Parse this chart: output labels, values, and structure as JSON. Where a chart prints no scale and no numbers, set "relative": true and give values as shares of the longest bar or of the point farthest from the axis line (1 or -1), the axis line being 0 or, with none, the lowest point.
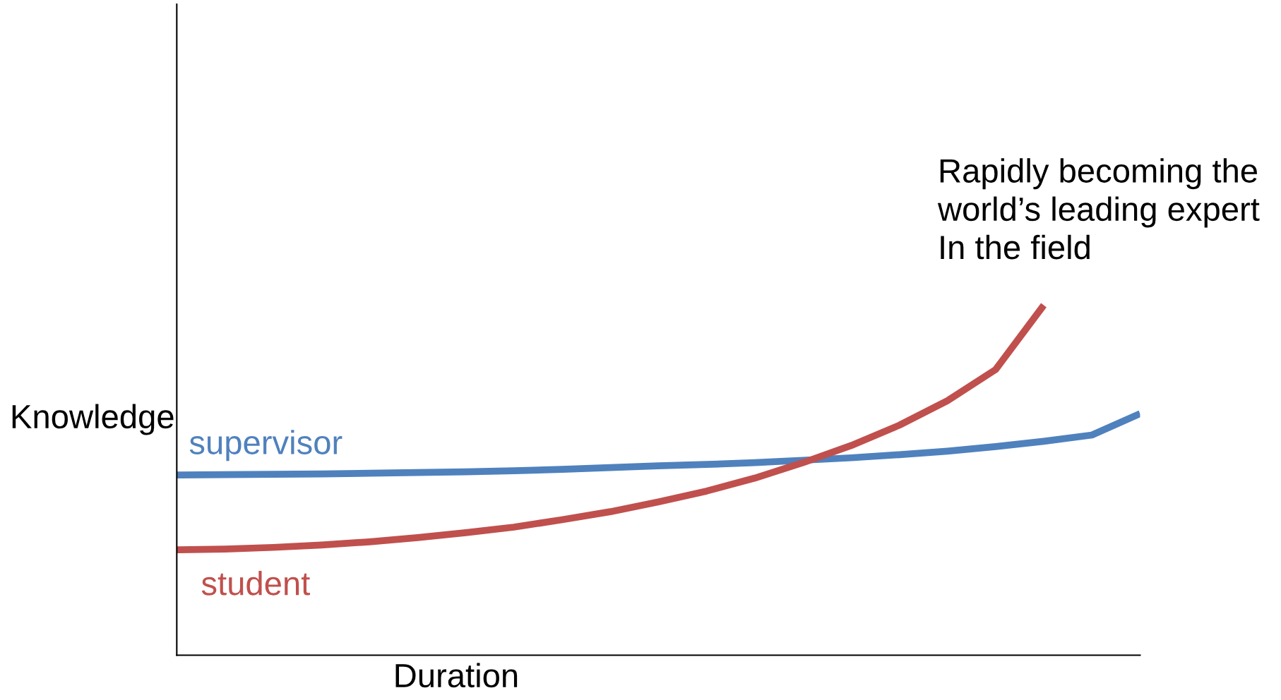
{
  "chart_data": {
    "type": "line",
    "relative": true,
    "xlabel": "Duration",
    "ylabel": "Knowledge",
    "categories": [
      null,
      null,
      null,
      null,
      null,
      null,
      null,
      null,
      null,
      null,
      null,
      null,
      null,
      null,
      null,
      null,
      null,
      null,
      null,
      null,
      null
    ],
    "series": [
      {
        "name": "supervisor",
        "color": "#4f81bd",
        "values": [
          0.515,
          0.516,
          0.517,
          0.518,
          0.52,
          0.522,
          0.524,
          0.527,
          0.531,
          0.536,
          0.541,
          0.545,
          0.55,
          0.557,
          0.564,
          0.573,
          0.583,
          0.596,
          0.611,
          0.629,
          0.69
        ]
      },
      {
        "name": "student",
        "color": "#c0504d",
        "values": [
          0.301,
          0.303,
          0.308,
          0.315,
          0.324,
          0.336,
          0.35,
          0.366,
          0.387,
          0.41,
          0.438,
          0.469,
          0.506,
          0.55,
          0.599,
          0.657,
          0.727,
          0.816,
          1.0,
          null,
          null
        ]
      }
    ],
    "annotations": [
      "Rapidly becoming the\nworld’s leading expert\nIn the field"
    ],
    "grid": false,
    "legend": false,
    "marker": "none",
    "line_style": "solid"
  }
}
